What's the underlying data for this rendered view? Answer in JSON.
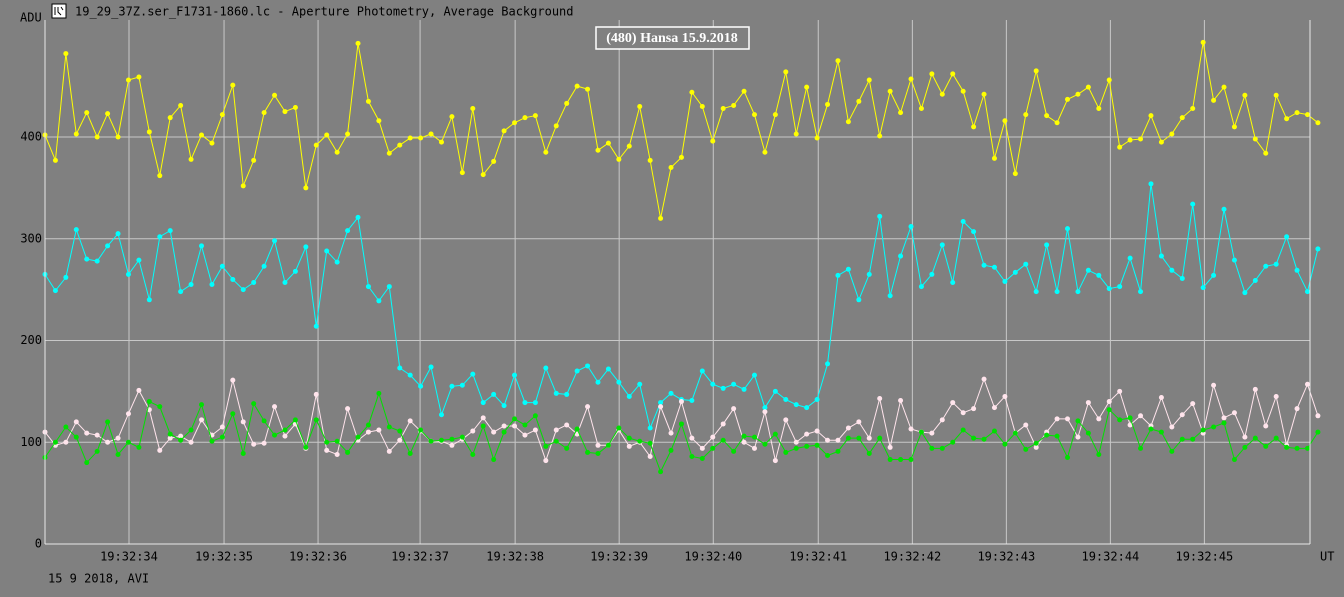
{
  "header": "19_29_37Z.ser_F1731-1860.lc - Aperture Photometry, Average Background",
  "footer": "15 9 2018, AVI",
  "chart_data": {
    "type": "line",
    "title": "(480) Hansa 15.9.2018",
    "y_label": "ADU",
    "x_label": "UT",
    "grid": true,
    "xlim": [
      1,
      123.2
    ],
    "ylim": [
      0,
      515
    ],
    "yticks": [
      0,
      100,
      200,
      300,
      400
    ],
    "xticks": [
      {
        "value": 9.05,
        "label": "19:32:34"
      },
      {
        "value": 18.16,
        "label": "19:32:35"
      },
      {
        "value": 27.17,
        "label": "19:32:36"
      },
      {
        "value": 36.95,
        "label": "19:32:37"
      },
      {
        "value": 46.06,
        "label": "19:32:38"
      },
      {
        "value": 56.03,
        "label": "19:32:39"
      },
      {
        "value": 65.05,
        "label": "19:32:40"
      },
      {
        "value": 75.11,
        "label": "19:32:41"
      },
      {
        "value": 84.13,
        "label": "19:32:42"
      },
      {
        "value": 93.14,
        "label": "19:32:43"
      },
      {
        "value": 103.11,
        "label": "19:32:44"
      },
      {
        "value": 112.12,
        "label": "19:32:45"
      }
    ],
    "x": [
      1,
      2,
      3,
      4,
      5,
      6,
      7,
      8,
      9,
      10,
      11,
      12,
      13,
      14,
      15,
      16,
      17,
      18,
      19,
      20,
      21,
      22,
      23,
      24,
      25,
      26,
      27,
      28,
      29,
      30,
      31,
      32,
      33,
      34,
      35,
      36,
      37,
      38,
      39,
      40,
      41,
      42,
      43,
      44,
      45,
      46,
      47,
      48,
      49,
      50,
      51,
      52,
      53,
      54,
      55,
      56,
      57,
      58,
      59,
      60,
      61,
      62,
      63,
      64,
      65,
      66,
      67,
      68,
      69,
      70,
      71,
      72,
      73,
      74,
      75,
      76,
      77,
      78,
      79,
      80,
      81,
      82,
      83,
      84,
      85,
      86,
      87,
      88,
      89,
      90,
      91,
      92,
      93,
      94,
      95,
      96,
      97,
      98,
      99,
      100,
      101,
      102,
      103,
      104,
      105,
      106,
      107,
      108,
      109,
      110,
      111,
      112,
      113,
      114,
      115,
      116,
      117,
      118,
      119,
      120,
      121,
      122,
      123
    ],
    "series": [
      {
        "color": "#ffff00",
        "values": [
          402,
          377,
          482,
          403,
          424,
          400,
          423,
          400,
          456,
          459,
          405,
          362,
          419,
          431,
          378,
          402,
          394,
          422,
          451,
          352,
          377,
          424,
          441,
          425,
          429,
          350,
          392,
          402,
          385,
          403,
          492,
          435,
          416,
          384,
          392,
          399,
          399,
          403,
          395,
          420,
          365,
          428,
          363,
          376,
          406,
          414,
          419,
          421,
          385,
          411,
          433,
          450,
          447,
          387,
          394,
          378,
          391,
          430,
          377,
          320,
          370,
          380,
          444,
          430,
          396,
          428,
          431,
          445,
          422,
          385,
          422,
          464,
          403,
          449,
          399,
          432,
          475,
          415,
          435,
          456,
          401,
          445,
          424,
          457,
          428,
          462,
          442,
          462,
          445,
          410,
          442,
          379,
          416,
          364,
          422,
          465,
          421,
          414,
          437,
          442,
          449,
          428,
          456,
          390,
          397,
          398,
          421,
          395,
          403,
          419,
          428,
          493,
          436,
          449,
          410,
          441,
          398,
          384,
          441,
          418,
          424,
          422,
          414
        ]
      },
      {
        "color": "#00ffff",
        "values": [
          265,
          249,
          262,
          309,
          280,
          278,
          293,
          305,
          265,
          279,
          240,
          302,
          308,
          248,
          255,
          293,
          255,
          273,
          260,
          250,
          257,
          273,
          298,
          257,
          268,
          292,
          214,
          288,
          277,
          308,
          321,
          253,
          239,
          253,
          173,
          166,
          155,
          174,
          127,
          155,
          156,
          167,
          139,
          147,
          136,
          166,
          139,
          139,
          173,
          148,
          147,
          170,
          175,
          159,
          172,
          159,
          145,
          157,
          114,
          139,
          148,
          142,
          141,
          170,
          157,
          153,
          157,
          152,
          166,
          134,
          150,
          142,
          137,
          134,
          142,
          177,
          264,
          270,
          240,
          265,
          322,
          244,
          283,
          312,
          253,
          265,
          294,
          257,
          317,
          307,
          274,
          272,
          258,
          267,
          275,
          248,
          294,
          248,
          310,
          248,
          269,
          264,
          251,
          253,
          281,
          248,
          354,
          283,
          269,
          261,
          334,
          252,
          264,
          329,
          279,
          247,
          259,
          273,
          275,
          302,
          269,
          248,
          290
        ]
      },
      {
        "color": "#ffe4ec",
        "values": [
          110,
          97,
          100,
          120,
          109,
          107,
          100,
          104,
          128,
          151,
          132,
          92,
          104,
          106,
          100,
          122,
          107,
          115,
          161,
          120,
          98,
          99,
          135,
          106,
          118,
          94,
          147,
          92,
          88,
          133,
          102,
          110,
          112,
          91,
          102,
          121,
          111,
          101,
          101,
          97,
          103,
          111,
          124,
          110,
          116,
          116,
          107,
          112,
          82,
          112,
          117,
          108,
          135,
          97,
          97,
          112,
          96,
          100,
          86,
          135,
          109,
          140,
          104,
          94,
          105,
          118,
          133,
          100,
          94,
          130,
          82,
          122,
          100,
          108,
          111,
          102,
          102,
          114,
          120,
          104,
          143,
          95,
          141,
          113,
          110,
          109,
          122,
          139,
          129,
          133,
          162,
          134,
          145,
          109,
          117,
          95,
          110,
          123,
          123,
          105,
          139,
          123,
          140,
          150,
          117,
          126,
          116,
          144,
          115,
          127,
          138,
          109,
          156,
          124,
          129,
          105,
          152,
          116,
          145,
          97,
          133,
          157,
          126
        ]
      },
      {
        "color": "#00e000",
        "values": [
          85,
          100,
          115,
          105,
          80,
          91,
          120,
          88,
          100,
          95,
          140,
          135,
          108,
          102,
          112,
          137,
          101,
          105,
          128,
          89,
          138,
          121,
          107,
          112,
          122,
          95,
          122,
          100,
          101,
          90,
          105,
          117,
          148,
          115,
          111,
          89,
          112,
          101,
          102,
          103,
          105,
          88,
          116,
          83,
          110,
          123,
          117,
          126,
          96,
          101,
          94,
          113,
          90,
          89,
          97,
          114,
          104,
          101,
          99,
          71,
          92,
          118,
          86,
          84,
          94,
          102,
          91,
          106,
          105,
          98,
          108,
          90,
          94,
          96,
          97,
          87,
          91,
          104,
          104,
          89,
          104,
          83,
          83,
          83,
          110,
          94,
          94,
          100,
          112,
          104,
          103,
          111,
          98,
          109,
          93,
          99,
          107,
          106,
          85,
          121,
          109,
          88,
          132,
          122,
          124,
          94,
          113,
          110,
          91,
          103,
          103,
          112,
          115,
          119,
          83,
          95,
          104,
          96,
          104,
          95,
          94,
          94,
          110
        ]
      }
    ]
  }
}
